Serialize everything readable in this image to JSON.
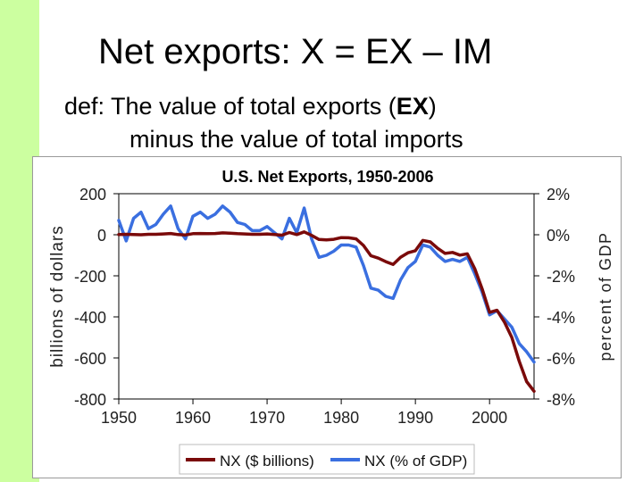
{
  "slide": {
    "title": "Net exports:  X = EX – IM",
    "definition_prefix": "def:  The value of total exports (",
    "definition_bold": "EX",
    "definition_suffix": ")",
    "definition_line2": "minus the value of total imports"
  },
  "colors": {
    "stripe": "#ccffa0",
    "nx_billions": "#7a0a0a",
    "nx_pct_gdp": "#3a6fe0"
  },
  "chart_data": {
    "type": "line",
    "title": "U.S. Net Exports, 1950-2006",
    "ylabel": "billions of dollars",
    "ylabel_right": "percent of GDP",
    "xlim": [
      1950,
      2006
    ],
    "ylim": [
      -800,
      200
    ],
    "ylim_right": [
      -8,
      2
    ],
    "x_ticks": [
      1950,
      1960,
      1970,
      1980,
      1990,
      2000
    ],
    "x_tick_labels": [
      "1950",
      "1960",
      "1970",
      "1980",
      "1990",
      "2000"
    ],
    "y_ticks": [
      200,
      0,
      -200,
      -400,
      -600,
      -800
    ],
    "y_tick_labels": [
      "200",
      "0",
      "-200",
      "-400",
      "-600",
      "-800"
    ],
    "y_ticks_right": [
      2,
      0,
      -2,
      -4,
      -6,
      -8
    ],
    "y_tick_labels_right": [
      "2%",
      "0%",
      "-2%",
      "-4%",
      "-6%",
      "-8%"
    ],
    "grid": false,
    "legend_position": "bottom",
    "series": [
      {
        "name": "NX ($ billions)",
        "axis": "left",
        "x": [
          1950,
          1951,
          1952,
          1953,
          1954,
          1955,
          1956,
          1957,
          1958,
          1959,
          1960,
          1961,
          1962,
          1963,
          1964,
          1965,
          1966,
          1967,
          1968,
          1969,
          1970,
          1971,
          1972,
          1973,
          1974,
          1975,
          1976,
          1977,
          1978,
          1979,
          1980,
          1981,
          1982,
          1983,
          1984,
          1985,
          1986,
          1987,
          1988,
          1989,
          1990,
          1991,
          1992,
          1993,
          1994,
          1995,
          1996,
          1997,
          1998,
          1999,
          2000,
          2001,
          2002,
          2003,
          2004,
          2005,
          2006
        ],
        "values": [
          1,
          2,
          1,
          0,
          2,
          2,
          4,
          6,
          1,
          -1,
          5,
          6,
          5,
          6,
          9,
          8,
          5,
          4,
          2,
          2,
          4,
          1,
          -2,
          11,
          1,
          14,
          -3,
          -23,
          -25,
          -22,
          -14,
          -15,
          -20,
          -52,
          -102,
          -114,
          -131,
          -145,
          -110,
          -88,
          -78,
          -28,
          -35,
          -66,
          -91,
          -86,
          -99,
          -93,
          -165,
          -264,
          -378,
          -368,
          -425,
          -500,
          -616,
          -715,
          -762
        ]
      },
      {
        "name": "NX (% of GDP)",
        "axis": "right",
        "x": [
          1950,
          1951,
          1952,
          1953,
          1954,
          1955,
          1956,
          1957,
          1958,
          1959,
          1960,
          1961,
          1962,
          1963,
          1964,
          1965,
          1966,
          1967,
          1968,
          1969,
          1970,
          1971,
          1972,
          1973,
          1974,
          1975,
          1976,
          1977,
          1978,
          1979,
          1980,
          1981,
          1982,
          1983,
          1984,
          1985,
          1986,
          1987,
          1988,
          1989,
          1990,
          1991,
          1992,
          1993,
          1994,
          1995,
          1996,
          1997,
          1998,
          1999,
          2000,
          2001,
          2002,
          2003,
          2004,
          2005,
          2006
        ],
        "values": [
          0.7,
          -0.3,
          0.8,
          1.1,
          0.3,
          0.5,
          1.0,
          1.4,
          0.3,
          -0.2,
          0.9,
          1.1,
          0.8,
          1.0,
          1.4,
          1.1,
          0.6,
          0.5,
          0.2,
          0.2,
          0.4,
          0.1,
          -0.2,
          0.8,
          0.1,
          1.3,
          -0.2,
          -1.1,
          -1.0,
          -0.8,
          -0.5,
          -0.5,
          -0.6,
          -1.5,
          -2.6,
          -2.7,
          -3.0,
          -3.1,
          -2.2,
          -1.6,
          -1.3,
          -0.5,
          -0.6,
          -1.0,
          -1.3,
          -1.2,
          -1.3,
          -1.1,
          -1.9,
          -2.8,
          -3.9,
          -3.7,
          -4.1,
          -4.5,
          -5.3,
          -5.7,
          -6.2
        ]
      }
    ]
  }
}
